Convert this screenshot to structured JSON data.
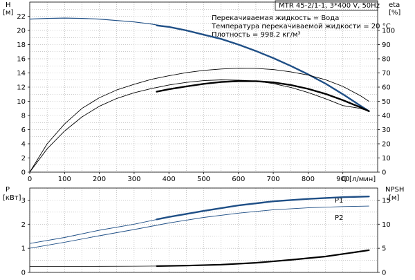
{
  "pump_title": "MTR 45-2/1-1, 3*400 V, 50Hz",
  "fluid_info": [
    "Перекачиваемая жидкость = Вода",
    "Температура перекачиваемой жидкости = 20 °C",
    "Плотность = 998.2 кг/м³"
  ],
  "colors": {
    "primary": "#1f4f86",
    "secondary": "#000000",
    "grid": "#9a9a9a"
  },
  "chart_data": [
    {
      "type": "line",
      "name": "top",
      "xlabel": "Q [л/мин]",
      "xlim": [
        0,
        1000
      ],
      "x_ticks": [
        0,
        100,
        200,
        300,
        400,
        500,
        600,
        700,
        800,
        900
      ],
      "y_left": {
        "label_line1": "H",
        "label_line2": "[м]",
        "lim": [
          0,
          24
        ],
        "ticks": [
          0,
          2,
          4,
          6,
          8,
          10,
          12,
          14,
          16,
          18,
          20,
          22
        ]
      },
      "y_right": {
        "label_line1": "eta",
        "label_line2": "[%]",
        "lim": [
          0,
          120
        ],
        "ticks": [
          0,
          10,
          20,
          30,
          40,
          50,
          60,
          70,
          80,
          90,
          100
        ]
      },
      "grid": true,
      "series": [
        {
          "role": "head",
          "axis": "left",
          "color_key": "primary",
          "width": 1.2,
          "x": [
            0,
            50,
            100,
            150,
            200,
            250,
            300,
            350,
            400,
            450,
            500,
            550,
            600,
            650,
            700,
            750,
            800,
            850,
            900,
            950,
            975
          ],
          "y": [
            21.6,
            21.7,
            21.75,
            21.7,
            21.6,
            21.4,
            21.2,
            20.9,
            20.5,
            20.0,
            19.4,
            18.8,
            18.0,
            17.1,
            16.1,
            15.0,
            13.8,
            12.5,
            11.0,
            9.4,
            8.6
          ]
        },
        {
          "role": "head-duty",
          "axis": "left",
          "color_key": "primary",
          "width": 2.4,
          "x": [
            365,
            400,
            450,
            500,
            550,
            600,
            650,
            700,
            750,
            800,
            850,
            900,
            950,
            975
          ],
          "y": [
            20.7,
            20.5,
            20.0,
            19.4,
            18.8,
            18.0,
            17.1,
            16.1,
            15.0,
            13.8,
            12.5,
            11.0,
            9.4,
            8.6
          ]
        },
        {
          "role": "efficiency",
          "axis": "right",
          "color_key": "secondary",
          "width": 0.9,
          "x": [
            0,
            50,
            100,
            150,
            200,
            250,
            300,
            350,
            400,
            450,
            500,
            550,
            600,
            650,
            700,
            750,
            800,
            850,
            900,
            950,
            975
          ],
          "y": [
            0,
            20,
            34,
            45,
            52.5,
            58,
            62,
            65.5,
            68,
            70.2,
            71.8,
            72.8,
            73.3,
            73.2,
            72.4,
            70.8,
            68.5,
            65.2,
            60.5,
            54,
            50
          ]
        },
        {
          "role": "efficiency-2",
          "axis": "right",
          "color_key": "secondary",
          "width": 0.9,
          "x": [
            0,
            50,
            100,
            150,
            200,
            250,
            300,
            350,
            400,
            450,
            500,
            550,
            600,
            650,
            700,
            750,
            800,
            850,
            900,
            950,
            975
          ],
          "y": [
            0,
            16.5,
            29,
            39,
            46.5,
            52,
            56,
            59,
            61.5,
            63.3,
            64.6,
            65.1,
            64.9,
            64.3,
            62.5,
            59.8,
            56.2,
            51.8,
            47,
            45,
            43
          ]
        },
        {
          "role": "efficiency-2-duty",
          "axis": "right",
          "color_key": "secondary",
          "width": 2.4,
          "x": [
            365,
            400,
            450,
            500,
            550,
            600,
            650,
            700,
            750,
            800,
            850,
            900,
            950,
            975
          ],
          "y": [
            56.8,
            58.5,
            60.5,
            62.3,
            63.6,
            64.2,
            64.2,
            63.3,
            61.5,
            58.8,
            55.2,
            50.8,
            45.8,
            43
          ]
        }
      ]
    },
    {
      "type": "line",
      "name": "bottom",
      "xlim": [
        0,
        1000
      ],
      "y_left": {
        "label_line1": "P",
        "label_line2": "[кВт]",
        "lim": [
          0,
          3.5
        ],
        "ticks": [
          0,
          1,
          2,
          3
        ]
      },
      "y_right": {
        "label_line1": "NPSH",
        "label_line2": "[м]",
        "lim": [
          0,
          17.5
        ],
        "ticks": [
          0,
          5,
          10,
          15
        ]
      },
      "grid": true,
      "series": [
        {
          "role": "P1",
          "name": "P1",
          "axis": "left",
          "color_key": "primary",
          "width": 0.9,
          "x": [
            0,
            100,
            200,
            300,
            400,
            500,
            600,
            700,
            800,
            900,
            975
          ],
          "y": [
            1.2,
            1.45,
            1.75,
            2.0,
            2.3,
            2.55,
            2.78,
            2.95,
            3.05,
            3.12,
            3.15
          ]
        },
        {
          "role": "P1-duty",
          "axis": "left",
          "color_key": "primary",
          "width": 2.4,
          "x": [
            365,
            400,
            500,
            600,
            700,
            800,
            900,
            975
          ],
          "y": [
            2.2,
            2.3,
            2.55,
            2.78,
            2.95,
            3.05,
            3.12,
            3.15
          ]
        },
        {
          "role": "P2",
          "name": "P2",
          "axis": "left",
          "color_key": "primary",
          "width": 0.9,
          "x": [
            0,
            100,
            200,
            300,
            400,
            500,
            600,
            700,
            800,
            900,
            975
          ],
          "y": [
            1.0,
            1.25,
            1.52,
            1.78,
            2.05,
            2.28,
            2.46,
            2.6,
            2.68,
            2.73,
            2.75
          ]
        },
        {
          "role": "NPSH",
          "axis": "right",
          "color_key": "secondary",
          "width": 0.8,
          "x": [
            0,
            100,
            200,
            300,
            365
          ],
          "y": [
            1.2,
            1.22,
            1.25,
            1.28,
            1.3
          ]
        },
        {
          "role": "NPSH-duty",
          "axis": "right",
          "color_key": "secondary",
          "width": 2.2,
          "x": [
            365,
            450,
            550,
            650,
            750,
            850,
            975
          ],
          "y": [
            1.3,
            1.4,
            1.6,
            2.0,
            2.6,
            3.3,
            4.6
          ]
        }
      ],
      "legend": [
        "P1",
        "P2"
      ]
    }
  ]
}
